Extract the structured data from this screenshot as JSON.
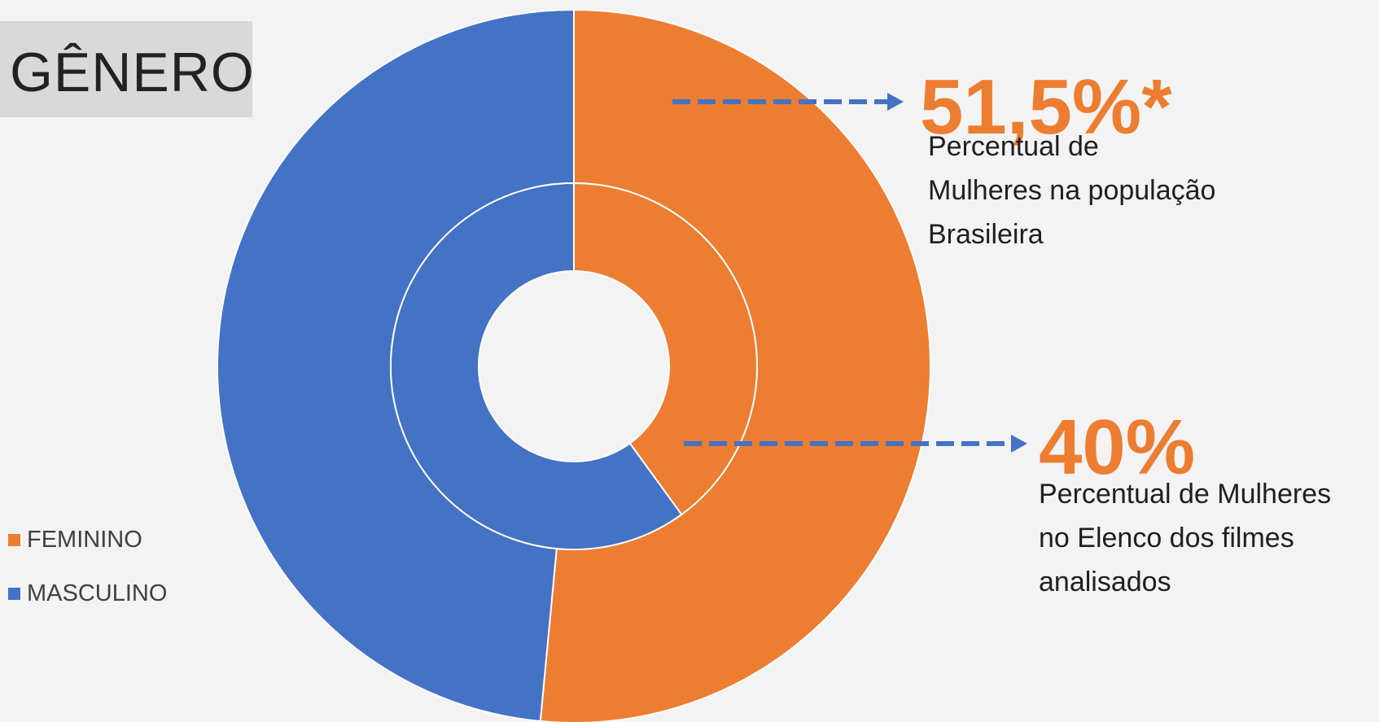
{
  "title": "GÊNERO",
  "chart_data": {
    "type": "pie",
    "subtype": "donut",
    "rings": [
      {
        "ring": "outer",
        "series_label": "Percentual de Mulheres na população Brasileira",
        "slices": [
          {
            "label": "FEMININO",
            "value": 51.5
          },
          {
            "label": "MASCULINO",
            "value": 48.5
          }
        ]
      },
      {
        "ring": "inner",
        "series_label": "Percentual de Mulheres no Elenco dos filmes analisados",
        "slices": [
          {
            "label": "FEMININO",
            "value": 40
          },
          {
            "label": "MASCULINO",
            "value": 60
          }
        ]
      }
    ],
    "legend": {
      "placement": "bottom-left",
      "entries": [
        {
          "label": "FEMININO",
          "color": "#ed7d31"
        },
        {
          "label": "MASCULINO",
          "color": "#4472c4"
        }
      ]
    },
    "annotations": [
      {
        "value": "51,5%*",
        "lines": [
          "Percentual de",
          "Mulheres na população",
          "Brasileira"
        ],
        "points_to": "outer ring, FEMININO"
      },
      {
        "value": "40%",
        "lines": [
          "Percentual de Mulheres",
          "no Elenco dos filmes",
          "analisados"
        ],
        "points_to": "inner ring, FEMININO"
      }
    ]
  },
  "colors": {
    "feminino": "#ed7d31",
    "masculino": "#4472c4",
    "arrow": "#4472c4",
    "annotation_value": "#ed7d31",
    "title_box": "#d9d9d9",
    "background": "#f3f3f3"
  }
}
